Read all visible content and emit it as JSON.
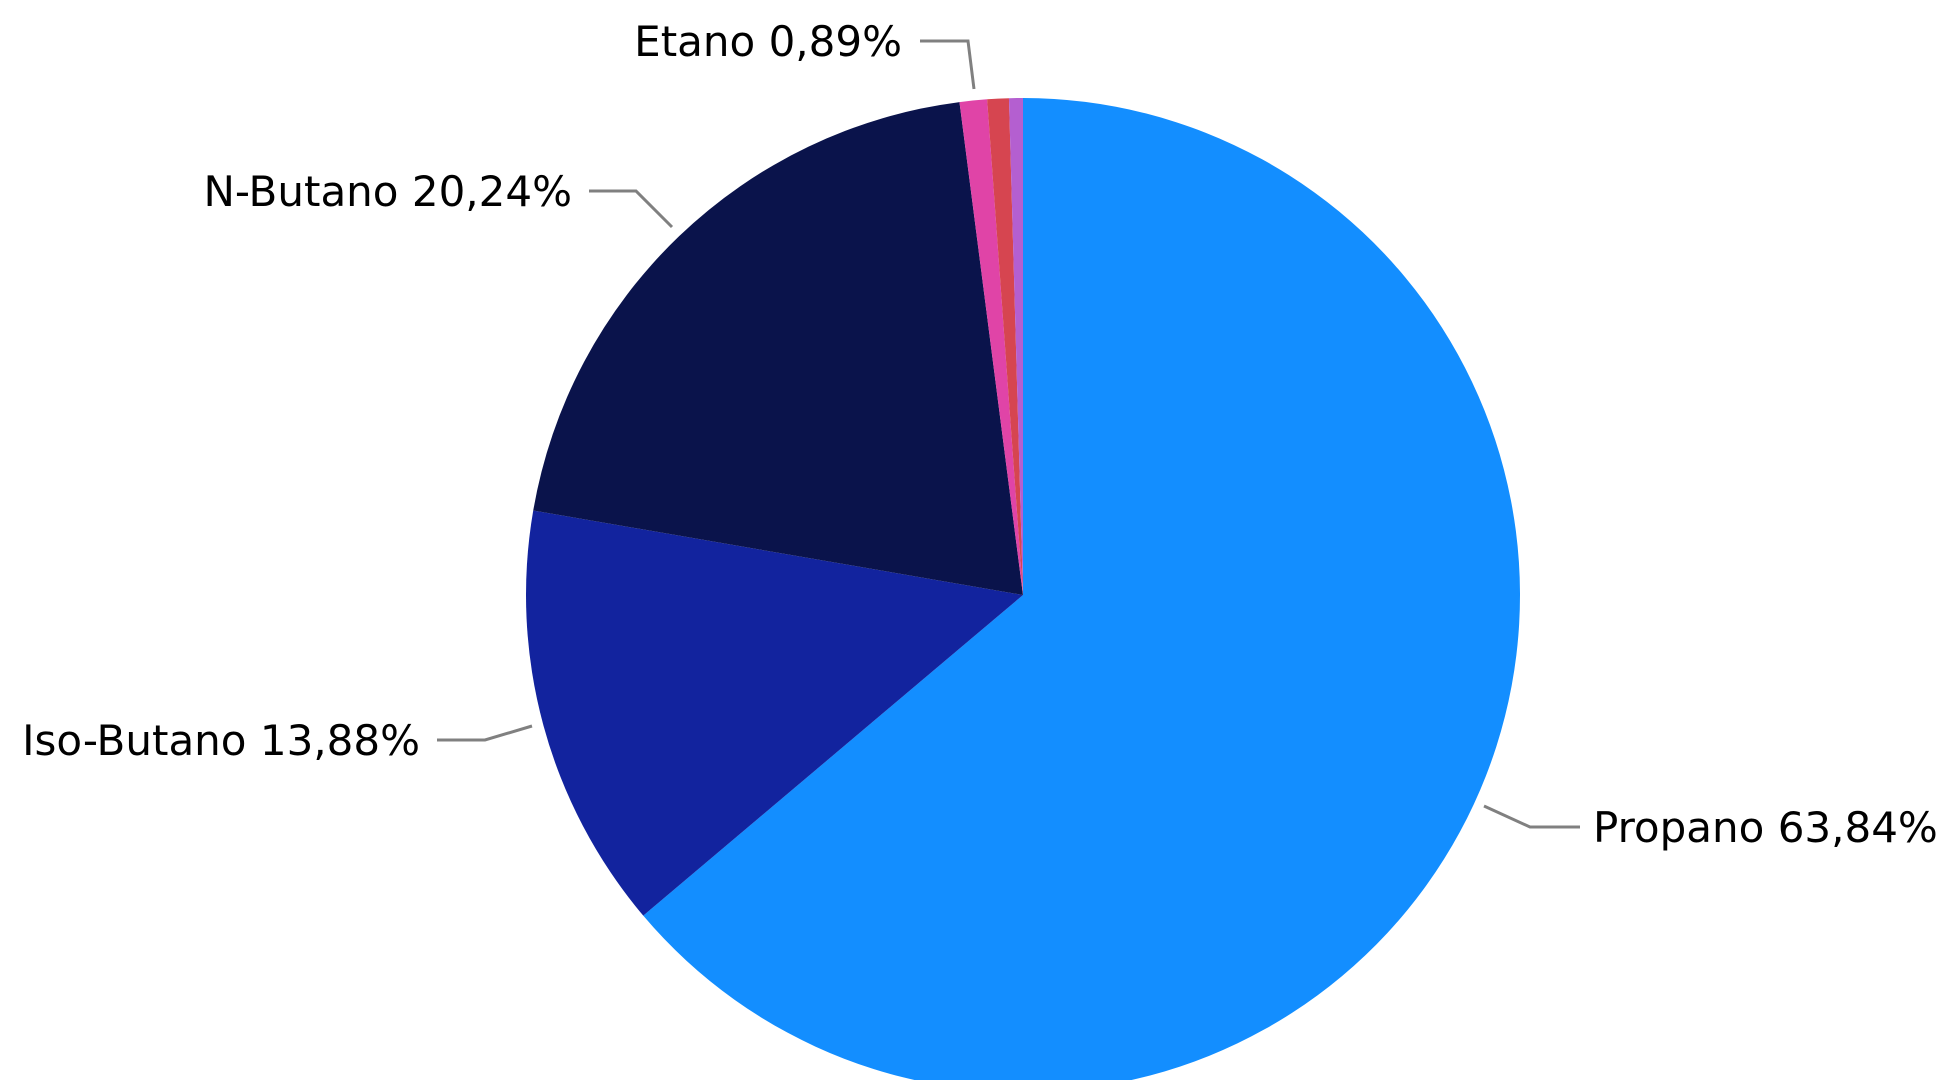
{
  "chart_data": {
    "type": "pie",
    "title": "",
    "legend": "none",
    "slices": [
      {
        "name": "Propano",
        "value": 63.84,
        "label": "Propano 63,84%",
        "color": "#138EFF",
        "labeled": true
      },
      {
        "name": "Iso-Butano",
        "value": 13.88,
        "label": "Iso-Butano 13,88%",
        "color": "#12239E",
        "labeled": true
      },
      {
        "name": "N-Butano",
        "value": 20.24,
        "label": "N-Butano 20,24%",
        "color": "#0A134B",
        "labeled": true
      },
      {
        "name": "Etano",
        "value": 0.89,
        "label": "Etano 0,89%",
        "color": "#E044A7",
        "labeled": true
      },
      {
        "name": "",
        "value": 0.7,
        "label": "",
        "color": "#D64550",
        "labeled": false
      },
      {
        "name": "",
        "value": 0.45,
        "label": "",
        "color": "#B45FD0",
        "labeled": false
      }
    ]
  }
}
